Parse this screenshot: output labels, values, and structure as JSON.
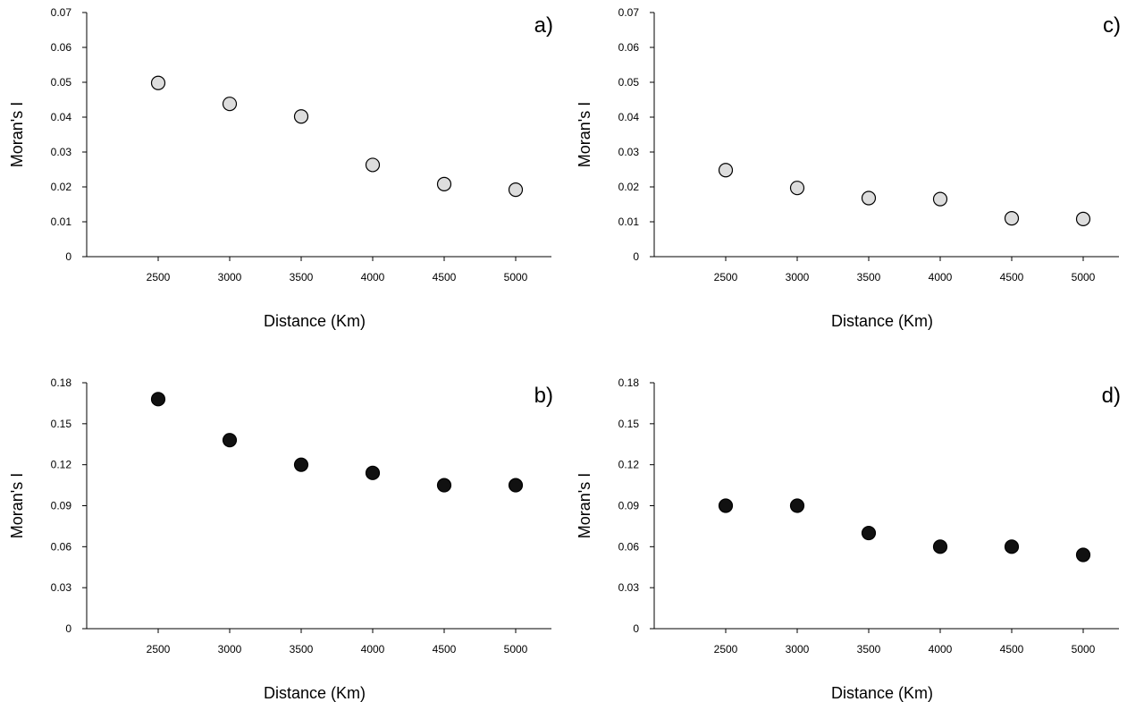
{
  "chart_data": [
    {
      "type": "scatter",
      "panel_label": "a)",
      "xlabel": "Distance (Km)",
      "ylabel": "Moran's I",
      "x": [
        2500,
        3000,
        3500,
        4000,
        4500,
        5000
      ],
      "y": [
        0.0498,
        0.0438,
        0.0402,
        0.0263,
        0.0208,
        0.0192
      ],
      "xlim": [
        2000,
        5250
      ],
      "ylim": [
        0,
        0.07
      ],
      "x_ticks": [
        2500,
        3000,
        3500,
        4000,
        4500,
        5000
      ],
      "y_ticks": [
        "0",
        "0.01",
        "0.02",
        "0.03",
        "0.04",
        "0.05",
        "0.06",
        "0.07"
      ],
      "marker_fill": "#dddddd",
      "grid": false
    },
    {
      "type": "scatter",
      "panel_label": "b)",
      "xlabel": "Distance (Km)",
      "ylabel": "Moran's I",
      "x": [
        2500,
        3000,
        3500,
        4000,
        4500,
        5000
      ],
      "y": [
        0.168,
        0.138,
        0.12,
        0.114,
        0.105,
        0.105
      ],
      "xlim": [
        2000,
        5250
      ],
      "ylim": [
        0,
        0.18
      ],
      "x_ticks": [
        2500,
        3000,
        3500,
        4000,
        4500,
        5000
      ],
      "y_ticks": [
        "0",
        "0.03",
        "0.06",
        "0.09",
        "0.12",
        "0.15",
        "0.18"
      ],
      "marker_fill": "#111111",
      "grid": false
    },
    {
      "type": "scatter",
      "panel_label": "c)",
      "xlabel": "Distance (Km)",
      "ylabel": "Moran's I",
      "x": [
        2500,
        3000,
        3500,
        4000,
        4500,
        5000
      ],
      "y": [
        0.0248,
        0.0197,
        0.0168,
        0.0165,
        0.011,
        0.0108
      ],
      "xlim": [
        2000,
        5250
      ],
      "ylim": [
        0,
        0.07
      ],
      "x_ticks": [
        2500,
        3000,
        3500,
        4000,
        4500,
        5000
      ],
      "y_ticks": [
        "0",
        "0.01",
        "0.02",
        "0.03",
        "0.04",
        "0.05",
        "0.06",
        "0.07"
      ],
      "marker_fill": "#dddddd",
      "grid": false
    },
    {
      "type": "scatter",
      "panel_label": "d)",
      "xlabel": "Distance (Km)",
      "ylabel": "Moran's I",
      "x": [
        2500,
        3000,
        3500,
        4000,
        4500,
        5000
      ],
      "y": [
        0.09,
        0.09,
        0.07,
        0.06,
        0.06,
        0.054
      ],
      "xlim": [
        2000,
        5250
      ],
      "ylim": [
        0,
        0.18
      ],
      "x_ticks": [
        2500,
        3000,
        3500,
        4000,
        4500,
        5000
      ],
      "y_ticks": [
        "0",
        "0.03",
        "0.06",
        "0.09",
        "0.12",
        "0.15",
        "0.18"
      ],
      "marker_fill": "#111111",
      "grid": false
    }
  ]
}
